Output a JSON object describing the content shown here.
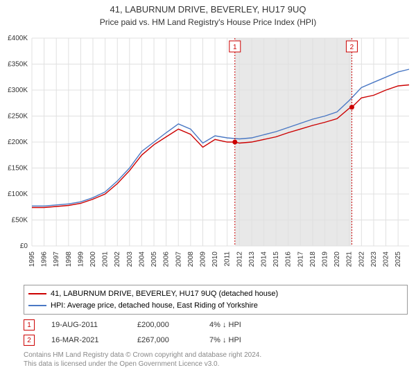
{
  "title": "41, LABURNUM DRIVE, BEVERLEY, HU17 9UQ",
  "subtitle": "Price paid vs. HM Land Registry's House Price Index (HPI)",
  "chart": {
    "type": "line",
    "background_color": "#ffffff",
    "grid_color": "#e0e0e0",
    "grid_on": true,
    "shaded_band_start": 2011.63,
    "shaded_band_end": 2021.21,
    "shaded_band_color": "#e8e8e8",
    "ylim": [
      0,
      400000
    ],
    "ytick_step": 50000,
    "ytick_labels": [
      "£0",
      "£50K",
      "£100K",
      "£150K",
      "£200K",
      "£250K",
      "£300K",
      "£350K",
      "£400K"
    ],
    "ytick_fontsize": 10,
    "xlim": [
      1995,
      2025.9
    ],
    "xticks": [
      1995,
      1996,
      1997,
      1998,
      1999,
      2000,
      2001,
      2002,
      2003,
      2004,
      2005,
      2006,
      2007,
      2008,
      2009,
      2010,
      2011,
      2012,
      2013,
      2014,
      2015,
      2016,
      2017,
      2018,
      2019,
      2020,
      2021,
      2022,
      2023,
      2024,
      2025
    ],
    "xtick_fontsize": 10,
    "series": [
      {
        "name": "41, LABURNUM DRIVE, BEVERLEY, HU17 9UQ (detached house)",
        "color": "#cc0000",
        "line_width": 1.4,
        "x": [
          1995,
          1996,
          1997,
          1998,
          1999,
          2000,
          2001,
          2002,
          2003,
          2004,
          2005,
          2006,
          2007,
          2008,
          2009,
          2010,
          2011,
          2011.63,
          2012,
          2013,
          2014,
          2015,
          2016,
          2017,
          2018,
          2019,
          2020,
          2021,
          2021.21,
          2022,
          2023,
          2024,
          2025,
          2025.9
        ],
        "y": [
          74000,
          74000,
          76000,
          78000,
          82000,
          90000,
          100000,
          120000,
          145000,
          175000,
          195000,
          210000,
          225000,
          215000,
          190000,
          205000,
          200000,
          200000,
          198000,
          200000,
          205000,
          210000,
          218000,
          225000,
          232000,
          238000,
          245000,
          265000,
          267000,
          285000,
          290000,
          300000,
          308000,
          310000
        ]
      },
      {
        "name": "HPI: Average price, detached house, East Riding of Yorkshire",
        "color": "#4a78c4",
        "line_width": 1.4,
        "x": [
          1995,
          1996,
          1997,
          1998,
          1999,
          2000,
          2001,
          2002,
          2003,
          2004,
          2005,
          2006,
          2007,
          2008,
          2009,
          2010,
          2011,
          2012,
          2013,
          2014,
          2015,
          2016,
          2017,
          2018,
          2019,
          2020,
          2021,
          2022,
          2023,
          2024,
          2025,
          2025.9
        ],
        "y": [
          77000,
          77000,
          79000,
          81000,
          85000,
          93000,
          104000,
          125000,
          150000,
          182000,
          200000,
          218000,
          235000,
          225000,
          198000,
          212000,
          208000,
          206000,
          208000,
          214000,
          220000,
          228000,
          236000,
          244000,
          250000,
          258000,
          280000,
          305000,
          315000,
          325000,
          335000,
          340000
        ]
      }
    ],
    "markers": [
      {
        "n": "1",
        "x": 2011.63,
        "y": 200000,
        "line_color": "#cc0000",
        "box_color": "#cc0000"
      },
      {
        "n": "2",
        "x": 2021.21,
        "y": 267000,
        "line_color": "#cc0000",
        "box_color": "#cc0000"
      }
    ],
    "marker_dot_color": "#cc0000",
    "marker_dot_radius": 3.5
  },
  "legend": {
    "items": [
      {
        "color": "#cc0000",
        "label": "41, LABURNUM DRIVE, BEVERLEY, HU17 9UQ (detached house)"
      },
      {
        "color": "#4a78c4",
        "label": "HPI: Average price, detached house, East Riding of Yorkshire"
      }
    ]
  },
  "marker_table": [
    {
      "n": "1",
      "box_color": "#cc0000",
      "date": "19-AUG-2011",
      "price": "£200,000",
      "pct": "4% ↓ HPI"
    },
    {
      "n": "2",
      "box_color": "#cc0000",
      "date": "16-MAR-2021",
      "price": "£267,000",
      "pct": "7% ↓ HPI"
    }
  ],
  "footer": {
    "line1": "Contains HM Land Registry data © Crown copyright and database right 2024.",
    "line2": "This data is licensed under the Open Government Licence v3.0."
  }
}
